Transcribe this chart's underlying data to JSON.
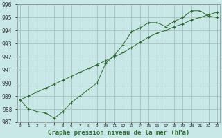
{
  "title": "Graphe pression niveau de la mer (hPa)",
  "x_labels": [
    "0",
    "1",
    "2",
    "3",
    "4",
    "5",
    "6",
    "7",
    "8",
    "9",
    "10",
    "11",
    "12",
    "13",
    "14",
    "15",
    "16",
    "17",
    "18",
    "19",
    "20",
    "21",
    "22",
    "23"
  ],
  "series1_x": [
    0,
    1,
    2,
    3,
    4,
    5,
    6,
    7,
    8,
    9,
    10,
    11,
    12,
    13,
    14,
    15,
    16,
    17,
    18,
    19,
    20,
    21,
    22,
    23
  ],
  "series1_y": [
    988.7,
    988.0,
    987.8,
    987.7,
    987.3,
    987.8,
    988.5,
    989.0,
    989.5,
    990.0,
    991.5,
    992.1,
    992.9,
    993.9,
    994.2,
    994.6,
    994.6,
    994.3,
    994.7,
    995.0,
    995.5,
    995.5,
    995.1,
    995.0
  ],
  "series2_x": [
    0,
    1,
    2,
    3,
    4,
    5,
    6,
    7,
    8,
    9,
    10,
    11,
    12,
    13,
    14,
    15,
    16,
    17,
    18,
    19,
    20,
    21,
    22,
    23
  ],
  "series2_y": [
    988.7,
    989.0,
    989.3,
    989.6,
    989.9,
    990.2,
    990.5,
    990.8,
    991.1,
    991.4,
    991.7,
    992.0,
    992.3,
    992.7,
    993.1,
    993.5,
    993.8,
    994.0,
    994.3,
    994.5,
    994.8,
    995.0,
    995.2,
    995.4
  ],
  "ylim": [
    987,
    996
  ],
  "yticks": [
    987,
    988,
    989,
    990,
    991,
    992,
    993,
    994,
    995,
    996
  ],
  "line_color": "#2d6a2d",
  "bg_color": "#c8e8e8",
  "grid_color": "#a0b8b8",
  "marker": "+"
}
